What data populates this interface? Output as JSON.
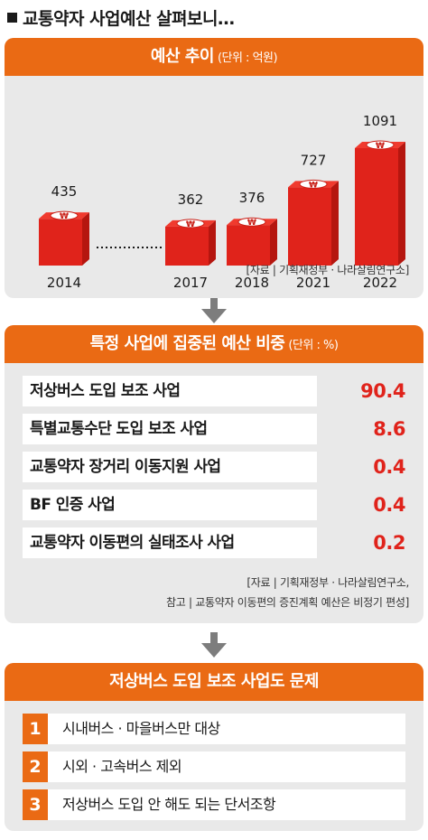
{
  "header": {
    "title": "교통약자 사업예산 살펴보니…"
  },
  "budget": {
    "title": "예산 추이",
    "unit": "(단위 : 억원)",
    "source": "[자료 | 기획재정부 · 나라살림연구소]"
  },
  "chart_data": {
    "type": "bar",
    "title": "예산 추이",
    "unit": "억원",
    "categories": [
      "2014",
      "2017",
      "2018",
      "2021",
      "2022"
    ],
    "values": [
      435,
      362,
      376,
      727,
      1091
    ],
    "colors": {
      "bar_front": "#e0231b",
      "bar_top": "#f03a2e",
      "bar_side": "#b5160f"
    }
  },
  "share": {
    "title": "특정 사업에 집중된 예산 비중",
    "unit": "(단위 : %)",
    "items": [
      {
        "label": "저상버스 도입 보조 사업",
        "value": "90.4"
      },
      {
        "label": "특별교통수단 도입 보조 사업",
        "value": "8.6"
      },
      {
        "label": "교통약자 장거리 이동지원 사업",
        "value": "0.4"
      },
      {
        "label": "BF 인증 사업",
        "value": "0.4"
      },
      {
        "label": "교통약자 이동편의 실태조사 사업",
        "value": "0.2"
      }
    ],
    "source_line1": "[자료 | 기획재정부 · 나라살림연구소,",
    "source_line2": "참고 | 교통약자 이동편의 증진계획 예산은 비정기 편성]"
  },
  "issues": {
    "title": "저상버스 도입 보조 사업도 문제",
    "items": [
      {
        "num": "1",
        "text": "시내버스 · 마을버스만 대상"
      },
      {
        "num": "2",
        "text": "시외 · 고속버스 제외"
      },
      {
        "num": "3",
        "text": "저상버스 도입 안 해도 되는 단서조항"
      }
    ]
  },
  "accent_color": "#ea6a14",
  "value_color": "#e0231b"
}
